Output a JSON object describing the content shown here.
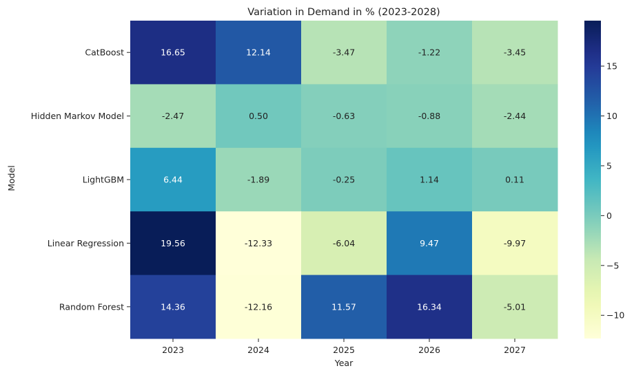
{
  "chart_data": {
    "type": "heatmap",
    "title": "Variation in Demand in % (2023-2028)",
    "xlabel": "Year",
    "ylabel": "Model",
    "x": [
      "2023",
      "2024",
      "2025",
      "2026",
      "2027"
    ],
    "y": [
      "CatBoost",
      "Hidden Markov Model",
      "LightGBM",
      "Linear Regression",
      "Random Forest"
    ],
    "values": [
      [
        16.65,
        12.14,
        -3.47,
        -1.22,
        -3.45
      ],
      [
        -2.47,
        0.5,
        -0.63,
        -0.88,
        -2.44
      ],
      [
        6.44,
        -1.89,
        -0.25,
        1.14,
        0.11
      ],
      [
        19.56,
        -12.33,
        -6.04,
        9.47,
        -9.97
      ],
      [
        14.36,
        -12.16,
        11.57,
        16.34,
        -5.01
      ]
    ],
    "value_format": "2 decimals",
    "colormap": "YlGnBu",
    "color_range": [
      -12.33,
      19.56
    ],
    "colorbar_ticks": [
      -10,
      -5,
      0,
      5,
      10,
      15
    ],
    "colorbar_position": "right",
    "grid": false
  }
}
